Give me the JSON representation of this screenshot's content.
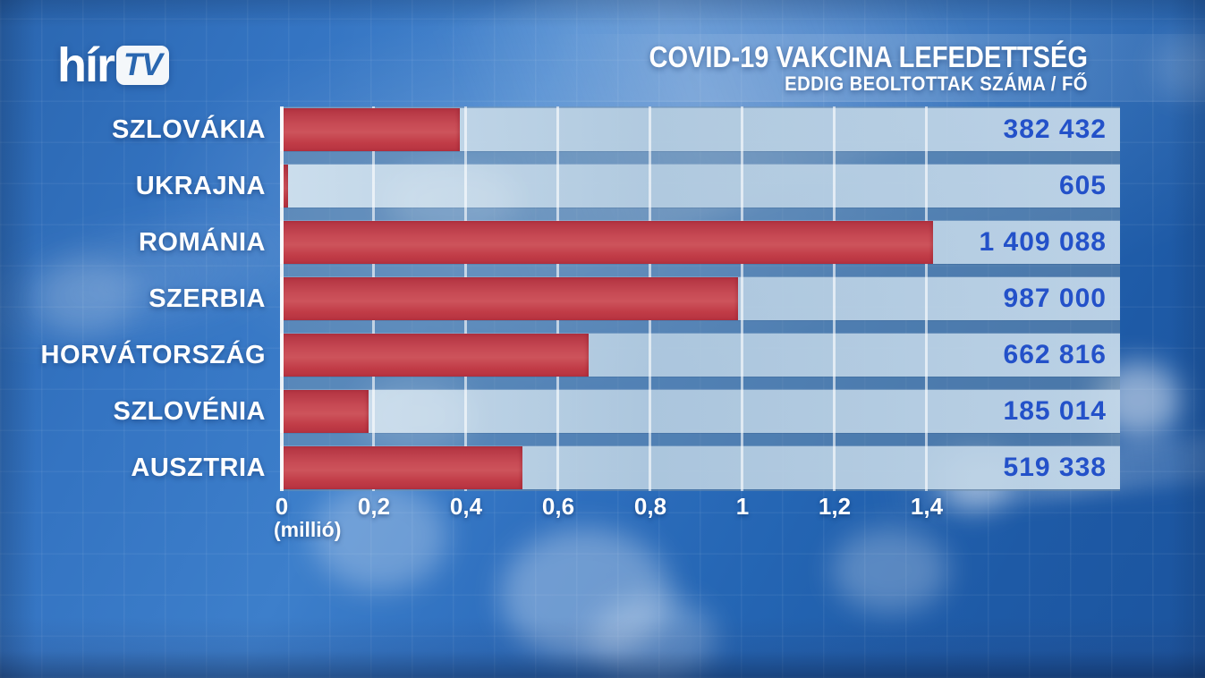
{
  "channel_logo": {
    "prefix": "hír",
    "box_text": "TV"
  },
  "header": {
    "title": "COVID-19 VAKCINA LEFEDETTSÉG",
    "subtitle": "EDDIG BEOLTOTTAK SZÁMA / FŐ"
  },
  "chart_data": {
    "type": "bar",
    "orientation": "horizontal",
    "title": "COVID-19 VAKCINA LEFEDETTSÉG",
    "subtitle": "EDDIG BEOLTOTTAK SZÁMA / FŐ",
    "categories": [
      "SZLOVÁKIA",
      "UKRAJNA",
      "ROMÁNIA",
      "SZERBIA",
      "HORVÁTORSZÁG",
      "SZLOVÉNIA",
      "AUSZTRIA"
    ],
    "values": [
      382432,
      605,
      1409088,
      987000,
      662816,
      185014,
      519338
    ],
    "value_labels": [
      "382 432",
      "605",
      "1 409 088",
      "987 000",
      "662 816",
      "185 014",
      "519 338"
    ],
    "x_axis": {
      "tick_labels": [
        "0",
        "0,2",
        "0,4",
        "0,6",
        "0,8",
        "1",
        "1,2",
        "1,4"
      ],
      "tick_values": [
        0,
        0.2,
        0.4,
        0.6,
        0.8,
        1,
        1.2,
        1.4
      ],
      "unit_label": "(millió)",
      "range_million": [
        0,
        1.82
      ]
    },
    "grid": true,
    "legend": null,
    "colors": {
      "bar": "#c4414c",
      "row_background": "#c3d7e8",
      "value_text": "#2351c9",
      "label_text": "#ffffff",
      "grid_line": "rgba(255,255,255,0.62)",
      "background": "#2f70bf"
    }
  }
}
